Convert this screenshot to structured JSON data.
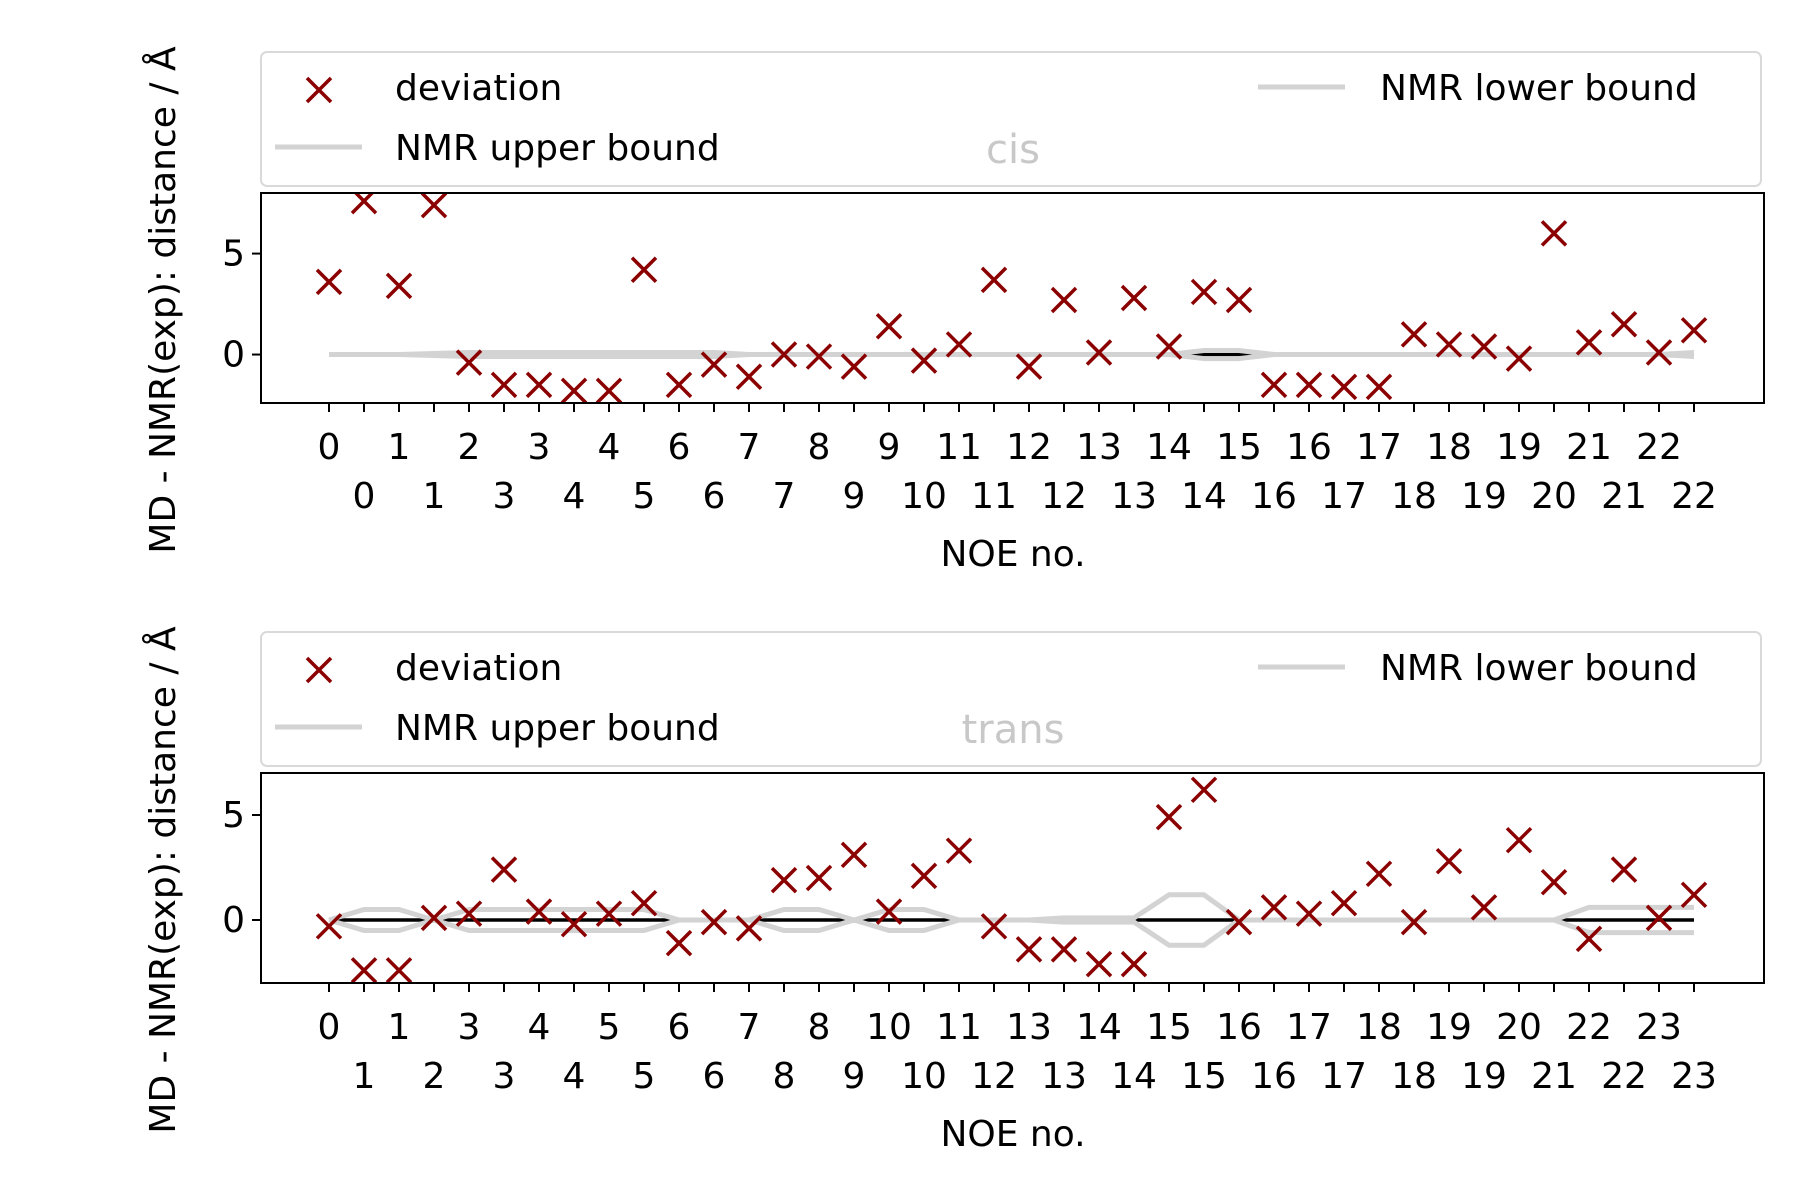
{
  "colors": {
    "deviation": "#8b0000",
    "bounds": "#d3d3d3",
    "zero_line": "#000000",
    "title": "#c8c8c8"
  },
  "chart_data": [
    {
      "type": "scatter",
      "title": "cis",
      "xlabel": "NOE no.",
      "ylabel": "MD - NMR(exp): distance / Å",
      "ylim": [
        -2.4,
        8.0
      ],
      "yticks": [
        0,
        5
      ],
      "grid": false,
      "legend_placement": "top (above plot)",
      "legend": [
        "deviation",
        "NMR lower bound",
        "NMR upper bound"
      ],
      "tick_labels": [
        "0",
        "0",
        "1",
        "1",
        "2",
        "3",
        "3",
        "4",
        "4",
        "5",
        "6",
        "6",
        "7",
        "7",
        "8",
        "9",
        "9",
        "10",
        "11",
        "11",
        "12",
        "12",
        "13",
        "13",
        "14",
        "14",
        "15",
        "16",
        "16",
        "17",
        "17",
        "18",
        "18",
        "19",
        "19",
        "20",
        "21",
        "21",
        "22",
        "22"
      ],
      "series": [
        {
          "name": "deviation",
          "values": [
            3.6,
            7.6,
            3.4,
            7.4,
            -0.4,
            -1.5,
            -1.5,
            -1.8,
            -1.8,
            4.2,
            -1.5,
            -0.5,
            -1.1,
            0.0,
            -0.1,
            -0.6,
            1.4,
            -0.3,
            0.5,
            3.7,
            -0.6,
            2.7,
            0.1,
            2.8,
            0.4,
            3.1,
            2.7,
            -1.5,
            -1.5,
            -1.6,
            -1.6,
            1.0,
            0.5,
            0.4,
            -0.2,
            6.0,
            0.6,
            1.5,
            0.1,
            1.2
          ]
        },
        {
          "name": "NMR lower bound",
          "values": [
            0.0,
            0.0,
            0.0,
            -0.05,
            -0.1,
            -0.1,
            -0.1,
            -0.1,
            -0.1,
            -0.1,
            -0.1,
            -0.1,
            0.0,
            0.0,
            0.0,
            0.0,
            0.0,
            0.0,
            0.0,
            0.0,
            0.0,
            0.0,
            0.0,
            0.0,
            0.0,
            -0.2,
            -0.2,
            0.0,
            0.0,
            0.0,
            0.0,
            0.0,
            0.0,
            0.0,
            0.0,
            0.0,
            0.0,
            0.0,
            0.0,
            -0.1
          ]
        },
        {
          "name": "NMR upper bound",
          "values": [
            0.0,
            0.0,
            0.0,
            0.05,
            0.1,
            0.1,
            0.1,
            0.1,
            0.1,
            0.1,
            0.1,
            0.1,
            0.0,
            0.0,
            0.0,
            0.0,
            0.0,
            0.0,
            0.0,
            0.0,
            0.0,
            0.0,
            0.0,
            0.0,
            0.0,
            0.2,
            0.2,
            0.0,
            0.0,
            0.0,
            0.0,
            0.0,
            0.0,
            0.0,
            0.0,
            0.0,
            0.0,
            0.0,
            0.0,
            0.1
          ]
        }
      ]
    },
    {
      "type": "scatter",
      "title": "trans",
      "xlabel": "NOE no.",
      "ylabel": "MD - NMR(exp): distance / Å",
      "ylim": [
        -3.0,
        7.0
      ],
      "yticks": [
        0,
        5
      ],
      "grid": false,
      "legend_placement": "top (above plot)",
      "legend": [
        "deviation",
        "NMR lower bound",
        "NMR upper bound"
      ],
      "tick_labels": [
        "0",
        "1",
        "1",
        "2",
        "3",
        "3",
        "4",
        "4",
        "5",
        "5",
        "6",
        "6",
        "7",
        "8",
        "8",
        "9",
        "10",
        "10",
        "11",
        "12",
        "13",
        "13",
        "14",
        "14",
        "15",
        "15",
        "16",
        "16",
        "17",
        "17",
        "18",
        "18",
        "19",
        "19",
        "20",
        "21",
        "22",
        "22",
        "23",
        "23"
      ],
      "series": [
        {
          "name": "deviation",
          "values": [
            -0.3,
            -2.4,
            -2.4,
            0.1,
            0.3,
            2.4,
            0.4,
            -0.2,
            0.3,
            0.8,
            -1.1,
            -0.1,
            -0.4,
            1.9,
            2.0,
            3.1,
            0.4,
            2.1,
            3.3,
            -0.3,
            -1.4,
            -1.4,
            -2.1,
            -2.1,
            4.9,
            6.2,
            -0.1,
            0.6,
            0.3,
            0.8,
            2.2,
            -0.1,
            2.8,
            0.6,
            3.8,
            1.8,
            -0.9,
            2.4,
            0.1,
            1.2
          ]
        },
        {
          "name": "NMR lower bound",
          "values": [
            0.0,
            -0.5,
            -0.5,
            0.0,
            -0.5,
            -0.5,
            -0.5,
            -0.5,
            -0.5,
            -0.5,
            0.0,
            0.0,
            0.0,
            -0.5,
            -0.5,
            0.0,
            -0.5,
            -0.5,
            0.0,
            0.0,
            0.0,
            -0.1,
            -0.1,
            -0.1,
            -1.2,
            -1.2,
            0.0,
            0.0,
            0.0,
            0.0,
            0.0,
            0.0,
            0.0,
            0.0,
            0.0,
            0.0,
            -0.6,
            -0.6,
            -0.6,
            -0.6
          ]
        },
        {
          "name": "NMR upper bound",
          "values": [
            0.0,
            0.5,
            0.5,
            0.0,
            0.5,
            0.5,
            0.5,
            0.5,
            0.5,
            0.5,
            0.0,
            0.0,
            0.0,
            0.5,
            0.5,
            0.0,
            0.5,
            0.5,
            0.0,
            0.0,
            0.0,
            0.1,
            0.1,
            0.1,
            1.2,
            1.2,
            0.0,
            0.0,
            0.0,
            0.0,
            0.0,
            0.0,
            0.0,
            0.0,
            0.0,
            0.0,
            0.6,
            0.6,
            0.6,
            0.6
          ]
        }
      ]
    }
  ]
}
